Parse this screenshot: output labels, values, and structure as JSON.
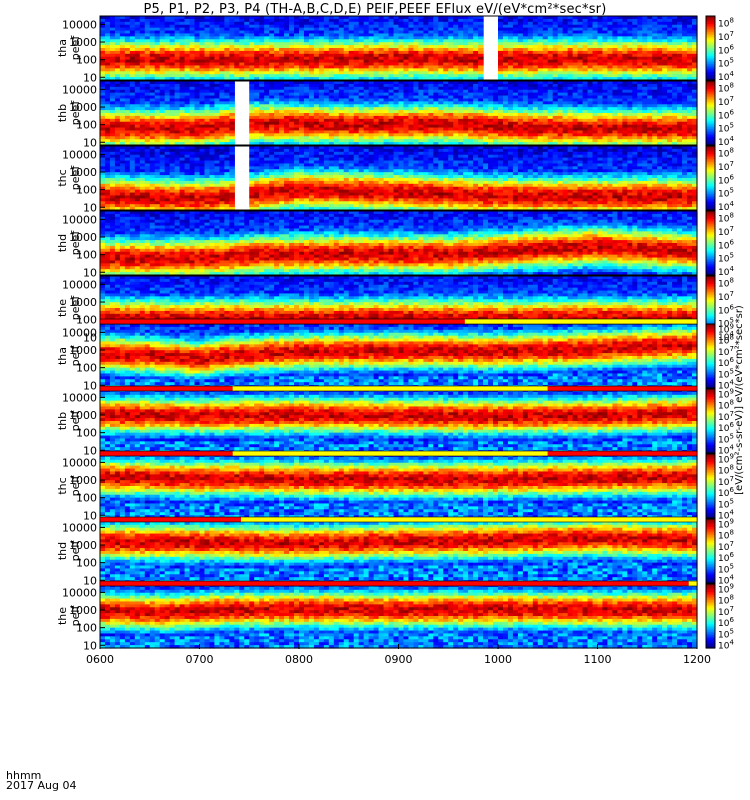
{
  "title": "P5, P1, P2, P3, P4 (TH-A,B,C,D,E) PEIF,PEEF EFlux eV/(eV*cm²*sec*sr)",
  "time_axis": {
    "row1": "hhmm",
    "row2": "2017 Aug 04"
  },
  "colors": {
    "red_bar": "#ff0000",
    "yellow_bar": "#ffff00",
    "gap": "#ffffff"
  },
  "chart_data": {
    "type": "heatmap",
    "x": {
      "ticks": [
        "0600",
        "0700",
        "0800",
        "0900",
        "1000",
        "1100",
        "1200"
      ],
      "range": [
        "06:00",
        "12:00"
      ]
    },
    "y": {
      "scale": "log",
      "range": [
        7,
        30000
      ],
      "ticks": [
        "10",
        "100",
        "1000",
        "10000"
      ]
    },
    "panels": [
      {
        "label": [
          "tha",
          "peef"
        ],
        "gaps": [
          [
            "09:50",
            "10:00"
          ]
        ],
        "colorbar": {
          "exponents": [
            4,
            5,
            6,
            7,
            8
          ],
          "range": [
            3.7,
            8.5
          ]
        },
        "bands": [
          [
            "06:00",
            100
          ],
          [
            "06:40",
            100
          ],
          [
            "07:10",
            100
          ],
          [
            "08:00",
            100
          ],
          [
            "09:00",
            110
          ],
          [
            "10:00",
            100
          ],
          [
            "11:00",
            110
          ],
          [
            "12:00",
            100
          ]
        ]
      },
      {
        "label": [
          "thb",
          "peef"
        ],
        "gaps": [
          [
            "07:20",
            "07:30"
          ]
        ],
        "colorbar": {
          "exponents": [
            4,
            5,
            6,
            7,
            8
          ],
          "range": [
            3.7,
            8.5
          ]
        },
        "bands": [
          [
            "06:00",
            60
          ],
          [
            "07:00",
            60
          ],
          [
            "07:30",
            120
          ],
          [
            "08:30",
            100
          ],
          [
            "09:30",
            110
          ],
          [
            "10:10",
            70
          ],
          [
            "11:00",
            60
          ],
          [
            "12:00",
            60
          ]
        ]
      },
      {
        "label": [
          "thc",
          "peef"
        ],
        "gaps": [
          [
            "07:20",
            "07:30"
          ]
        ],
        "colorbar": {
          "exponents": [
            4,
            5,
            6,
            7,
            8
          ],
          "range": [
            3.7,
            8.5
          ]
        },
        "bands": [
          [
            "06:00",
            40
          ],
          [
            "07:00",
            30
          ],
          [
            "07:30",
            50
          ],
          [
            "08:00",
            100
          ],
          [
            "09:00",
            70
          ],
          [
            "10:10",
            40
          ],
          [
            "11:00",
            40
          ],
          [
            "12:00",
            40
          ]
        ]
      },
      {
        "label": [
          "thd",
          "peef"
        ],
        "gaps": [],
        "colorbar": {
          "exponents": [
            4,
            5,
            6,
            7,
            8
          ],
          "range": [
            3.7,
            8.5
          ]
        },
        "bands": [
          [
            "06:00",
            60
          ],
          [
            "07:00",
            60
          ],
          [
            "07:40",
            100
          ],
          [
            "08:30",
            110
          ],
          [
            "09:30",
            100
          ],
          [
            "10:20",
            200
          ],
          [
            "11:00",
            300
          ],
          [
            "11:30",
            200
          ],
          [
            "12:00",
            150
          ]
        ]
      },
      {
        "label": [
          "the",
          "peef"
        ],
        "gaps": [],
        "colorbar": {
          "exponents": [
            4,
            5,
            6,
            7,
            8
          ],
          "range": [
            3.7,
            8.5
          ]
        },
        "bands": [
          [
            "06:00",
            120
          ],
          [
            "06:50",
            100
          ],
          [
            "07:10",
            120
          ],
          [
            "08:00",
            110
          ],
          [
            "09:00",
            120
          ],
          [
            "10:00",
            110
          ],
          [
            "11:00",
            120
          ],
          [
            "12:00",
            110
          ]
        ]
      },
      {
        "label": [
          "tha",
          "peif"
        ],
        "gaps": [],
        "colorbar": {
          "exponents": [
            4,
            5,
            6,
            7,
            8,
            9
          ],
          "range": [
            3.7,
            9.4
          ]
        },
        "bands": [
          [
            "06:00",
            600
          ],
          [
            "06:30",
            500
          ],
          [
            "07:00",
            300
          ],
          [
            "07:15",
            500
          ],
          [
            "08:00",
            800
          ],
          [
            "09:00",
            900
          ],
          [
            "10:00",
            800
          ],
          [
            "11:00",
            1200
          ],
          [
            "12:00",
            2000
          ]
        ]
      },
      {
        "label": [
          "thb",
          "peif"
        ],
        "gaps": [],
        "colorbar": {
          "exponents": [
            4,
            5,
            6,
            7,
            8,
            9
          ],
          "range": [
            3.7,
            9.4
          ]
        },
        "bands": [
          [
            "06:00",
            1000
          ],
          [
            "07:00",
            900
          ],
          [
            "08:00",
            1000
          ],
          [
            "09:00",
            900
          ],
          [
            "10:00",
            800
          ],
          [
            "11:00",
            900
          ],
          [
            "12:00",
            1200
          ]
        ]
      },
      {
        "label": [
          "thc",
          "peif"
        ],
        "gaps": [],
        "colorbar": {
          "exponents": [
            4,
            5,
            6,
            7,
            8,
            9
          ],
          "range": [
            3.7,
            9.4
          ]
        },
        "bands": [
          [
            "06:00",
            1500
          ],
          [
            "07:00",
            1200
          ],
          [
            "08:00",
            1100
          ],
          [
            "09:00",
            1000
          ],
          [
            "10:00",
            1100
          ],
          [
            "11:00",
            1300
          ],
          [
            "12:00",
            1500
          ]
        ]
      },
      {
        "label": [
          "thd",
          "peif"
        ],
        "gaps": [],
        "colorbar": {
          "exponents": [
            4,
            5,
            6,
            7,
            8,
            9
          ],
          "range": [
            3.7,
            9.4
          ]
        },
        "bands": [
          [
            "06:00",
            1500
          ],
          [
            "07:00",
            1400
          ],
          [
            "08:00",
            1200
          ],
          [
            "09:00",
            1600
          ],
          [
            "10:00",
            1800
          ],
          [
            "11:00",
            2500
          ],
          [
            "11:30",
            2000
          ],
          [
            "12:00",
            2000
          ]
        ]
      },
      {
        "label": [
          "the",
          "peif"
        ],
        "gaps": [],
        "colorbar": {
          "exponents": [
            4,
            5,
            6,
            7,
            8,
            9
          ],
          "range": [
            3.7,
            9.4
          ]
        },
        "bands": [
          [
            "06:00",
            900
          ],
          [
            "06:40",
            700
          ],
          [
            "07:10",
            1000
          ],
          [
            "08:00",
            1100
          ],
          [
            "09:00",
            1000
          ],
          [
            "10:00",
            1100
          ],
          [
            "11:00",
            1000
          ],
          [
            "12:00",
            1000
          ]
        ]
      }
    ],
    "status_bars": [
      {
        "after_panel": 5,
        "segments": [
          [
            "06:00",
            "09:40",
            "red"
          ],
          [
            "09:40",
            "12:00",
            "yellow"
          ]
        ]
      },
      {
        "after_panel": 6,
        "segments": [
          [
            "06:00",
            "07:20",
            "red"
          ],
          [
            "07:20",
            "10:30",
            "yellow"
          ],
          [
            "10:30",
            "12:00",
            "red"
          ]
        ]
      },
      {
        "after_panel": 7,
        "segments": [
          [
            "06:00",
            "07:20",
            "red"
          ],
          [
            "07:20",
            "10:30",
            "yellow"
          ],
          [
            "10:30",
            "12:00",
            "red"
          ]
        ]
      },
      {
        "after_panel": 8,
        "segments": [
          [
            "06:00",
            "07:25",
            "red"
          ],
          [
            "07:25",
            "12:00",
            "yellow"
          ]
        ]
      },
      {
        "after_panel": 9,
        "segments": [
          [
            "06:00",
            "11:55",
            "red"
          ],
          [
            "11:55",
            "12:00",
            "yellow"
          ]
        ]
      }
    ],
    "colorbar_label": "[eV/(cm²-s-sr-eV)] eV/(eV*cm²*sec*sr)"
  }
}
